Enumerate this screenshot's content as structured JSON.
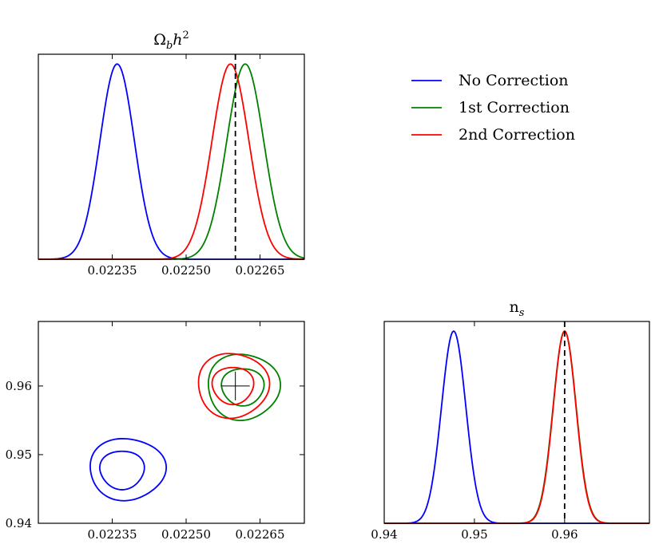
{
  "chart_data": [
    {
      "panel": "top-left",
      "type": "line",
      "title": "Ωbh²",
      "title_parts": {
        "base": "Ω",
        "sub": "b",
        "mid": "h",
        "sup": "2"
      },
      "xlim": [
        0.0222,
        0.02274
      ],
      "ylim": [
        0,
        1.05
      ],
      "xticks": [
        0.02235,
        0.0225,
        0.02265
      ],
      "xtick_labels": [
        "0.02235",
        "0.02250",
        "0.02265"
      ],
      "reference_line": 0.0226,
      "series": [
        {
          "name": "No Correction",
          "color": "#0000ff",
          "mu": 0.02236,
          "sigma": 3.5e-05,
          "peak": 1.0
        },
        {
          "name": "1st Correction",
          "color": "#008000",
          "mu": 0.02262,
          "sigma": 3.75e-05,
          "peak": 1.0
        },
        {
          "name": "2nd Correction",
          "color": "#ff0000",
          "mu": 0.02259,
          "sigma": 3.75e-05,
          "peak": 1.0
        }
      ]
    },
    {
      "panel": "bottom-left",
      "type": "contour",
      "xlim": [
        0.0222,
        0.02274
      ],
      "ylim": [
        0.94,
        0.9694
      ],
      "xticks": [
        0.02235,
        0.0225,
        0.02265
      ],
      "xtick_labels": [
        "0.02235",
        "0.02250",
        "0.02265"
      ],
      "yticks": [
        0.94,
        0.95,
        0.96
      ],
      "ytick_labels": [
        "0.94",
        "0.95",
        "0.96"
      ],
      "marker": [
        0.0226,
        0.96
      ],
      "series": [
        {
          "name": "No Correction",
          "color": "#0000ff",
          "contours": [
            {
              "cx": 0.02237,
              "cy": 0.9478,
              "rx": 4.5e-05,
              "ry": 0.0028
            },
            {
              "cx": 0.02238,
              "cy": 0.9479,
              "rx": 7.7e-05,
              "ry": 0.0045
            }
          ]
        },
        {
          "name": "1st Correction",
          "color": "#008000",
          "contours": [
            {
              "cx": 0.022615,
              "cy": 0.9599,
              "rx": 4.3e-05,
              "ry": 0.0027
            },
            {
              "cx": 0.022616,
              "cy": 0.9599,
              "rx": 7.3e-05,
              "ry": 0.0048
            }
          ]
        },
        {
          "name": "2nd Correction",
          "color": "#ff0000",
          "contours": [
            {
              "cx": 0.022595,
              "cy": 0.9601,
              "rx": 4.2e-05,
              "ry": 0.0027
            },
            {
              "cx": 0.022595,
              "cy": 0.9601,
              "rx": 7.2e-05,
              "ry": 0.0047
            }
          ]
        }
      ]
    },
    {
      "panel": "bottom-right",
      "type": "line",
      "title": "ns",
      "title_parts": {
        "base": "n",
        "sub": "s"
      },
      "xlim": [
        0.94,
        0.9694
      ],
      "ylim": [
        0,
        1.05
      ],
      "xticks": [
        0.94,
        0.95,
        0.96
      ],
      "xtick_labels": [
        "0.94",
        "0.95",
        "0.96"
      ],
      "reference_line": 0.96,
      "series": [
        {
          "name": "No Correction",
          "color": "#0000ff",
          "mu": 0.9477,
          "sigma": 0.00135,
          "peak": 1.0
        },
        {
          "name": "1st Correction",
          "color": "#008000",
          "mu": 0.96,
          "sigma": 0.00128,
          "peak": 1.0
        },
        {
          "name": "2nd Correction",
          "color": "#ff0000",
          "mu": 0.96,
          "sigma": 0.00126,
          "peak": 1.0
        }
      ]
    }
  ],
  "legend": {
    "placement": "top-right",
    "entries": [
      {
        "label": "No Correction",
        "color": "#0000ff"
      },
      {
        "label": "1st Correction",
        "color": "#008000"
      },
      {
        "label": "2nd Correction",
        "color": "#ff0000"
      }
    ]
  }
}
